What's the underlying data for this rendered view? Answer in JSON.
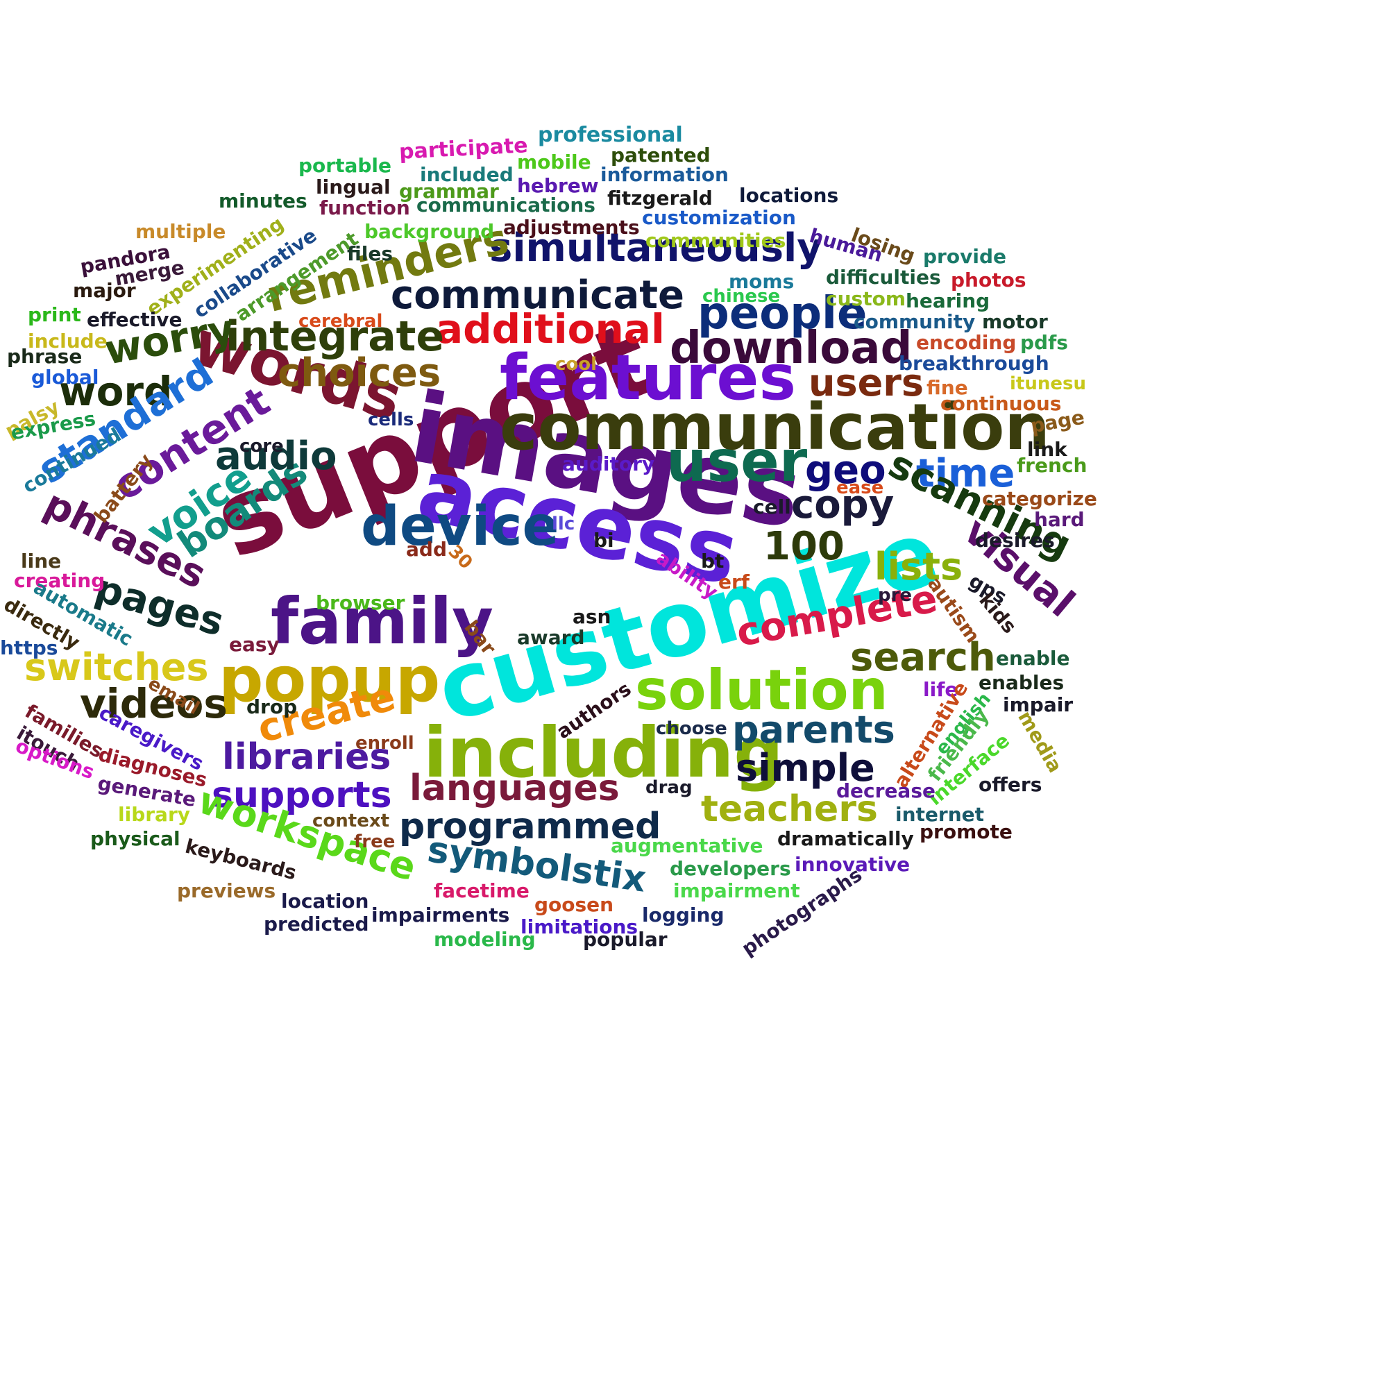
{
  "words": [
    {
      "text": "support",
      "color": "#7a0d3c",
      "weight": 100
    },
    {
      "text": "images",
      "color": "#5a1082",
      "weight": 95
    },
    {
      "text": "customize",
      "color": "#00e5dc",
      "weight": 95
    },
    {
      "text": "access",
      "color": "#5b21d6",
      "weight": 90
    },
    {
      "text": "communication",
      "color": "#3a3d0d",
      "weight": 80
    },
    {
      "text": "including",
      "color": "#86b10a",
      "weight": 78
    },
    {
      "text": "features",
      "color": "#6c0fd1",
      "weight": 72
    },
    {
      "text": "words",
      "color": "#7b1530",
      "weight": 72
    },
    {
      "text": "family",
      "color": "#4c1487",
      "weight": 70
    },
    {
      "text": "solution",
      "color": "#79d20c",
      "weight": 68
    },
    {
      "text": "popup",
      "color": "#c7a700",
      "weight": 68
    },
    {
      "text": "device",
      "color": "#0f4a82",
      "weight": 62
    },
    {
      "text": "user",
      "color": "#0e6a50",
      "weight": 62
    },
    {
      "text": "additional",
      "color": "#e00f1b",
      "weight": 50
    },
    {
      "text": "simultaneously",
      "color": "#10136a",
      "weight": 50
    },
    {
      "text": "communicate",
      "color": "#0e1a3a",
      "weight": 50
    },
    {
      "text": "people",
      "color": "#0c2d7a",
      "weight": 50
    },
    {
      "text": "download",
      "color": "#3a0a3a",
      "weight": 50
    },
    {
      "text": "integrate",
      "color": "#2e3f0a",
      "weight": 50
    },
    {
      "text": "reminders",
      "color": "#727a10",
      "weight": 50
    },
    {
      "text": "worry",
      "color": "#2b4d0c",
      "weight": 48
    },
    {
      "text": "choices",
      "color": "#7e5a10",
      "weight": 46
    },
    {
      "text": "word",
      "color": "#1c2d0a",
      "weight": 46
    },
    {
      "text": "standard",
      "color": "#1e6fd6",
      "weight": 46
    },
    {
      "text": "content",
      "color": "#6a1a9a",
      "weight": 46
    },
    {
      "text": "voice",
      "color": "#129e8d",
      "weight": 46
    },
    {
      "text": "boards",
      "color": "#138a7a",
      "weight": 46
    },
    {
      "text": "phrases",
      "color": "#5a0f5a",
      "weight": 46
    },
    {
      "text": "audio",
      "color": "#0e3a3a",
      "weight": 46
    },
    {
      "text": "geo",
      "color": "#0f0c7a",
      "weight": 46
    },
    {
      "text": "time",
      "color": "#1a5fd8",
      "weight": 46
    },
    {
      "text": "users",
      "color": "#7a2a0f",
      "weight": 46
    },
    {
      "text": "scanning",
      "color": "#163a0f",
      "weight": 46
    },
    {
      "text": "copy",
      "color": "#1a1a3a",
      "weight": 46
    },
    {
      "text": "100",
      "color": "#2d3a0a",
      "weight": 46
    },
    {
      "text": "visual",
      "color": "#5a0f6a",
      "weight": 46
    },
    {
      "text": "lists",
      "color": "#8ab00a",
      "weight": 46
    },
    {
      "text": "complete",
      "color": "#d81a4a",
      "weight": 46
    },
    {
      "text": "pages",
      "color": "#0e2d2a",
      "weight": 46
    },
    {
      "text": "switches",
      "color": "#d8c81a",
      "weight": 44
    },
    {
      "text": "videos",
      "color": "#2d2a0a",
      "weight": 46
    },
    {
      "text": "create",
      "color": "#f08a0a",
      "weight": 46
    },
    {
      "text": "search",
      "color": "#4d5a0a",
      "weight": 46
    },
    {
      "text": "parents",
      "color": "#134a6a",
      "weight": 46
    },
    {
      "text": "simple",
      "color": "#0f0f3a",
      "weight": 46
    },
    {
      "text": "libraries",
      "color": "#4d1aa0",
      "weight": 46
    },
    {
      "text": "languages",
      "color": "#7a1a3a",
      "weight": 46
    },
    {
      "text": "supports",
      "color": "#4d10c0",
      "weight": 46
    },
    {
      "text": "teachers",
      "color": "#a0b010",
      "weight": 46
    },
    {
      "text": "workspace",
      "color": "#5ad81a",
      "weight": 46
    },
    {
      "text": "programmed",
      "color": "#0f2a4a",
      "weight": 46
    },
    {
      "text": "symbolstix",
      "color": "#135a7a",
      "weight": 46
    },
    {
      "text": "professional",
      "color": "#1a8aa0",
      "weight": 22
    },
    {
      "text": "participate",
      "color": "#d81ab0",
      "weight": 22
    },
    {
      "text": "patented",
      "color": "#2d4d0a",
      "weight": 22
    },
    {
      "text": "portable",
      "color": "#1ab84d",
      "weight": 22
    },
    {
      "text": "included",
      "color": "#1a7a7a",
      "weight": 22
    },
    {
      "text": "mobile",
      "color": "#4dc81a",
      "weight": 22
    },
    {
      "text": "information",
      "color": "#1a5a9a",
      "weight": 22
    },
    {
      "text": "lingual",
      "color": "#2a1a1a",
      "weight": 22
    },
    {
      "text": "grammar",
      "color": "#4d9a1a",
      "weight": 22
    },
    {
      "text": "hebrew",
      "color": "#5a1ab0",
      "weight": 22
    },
    {
      "text": "minutes",
      "color": "#135a2a",
      "weight": 22
    },
    {
      "text": "function",
      "color": "#7a1a4a",
      "weight": 22
    },
    {
      "text": "communications",
      "color": "#1a6a4a",
      "weight": 22
    },
    {
      "text": "fitzgerald",
      "color": "#1a1a1a",
      "weight": 22
    },
    {
      "text": "locations",
      "color": "#0f1a3a",
      "weight": 22
    },
    {
      "text": "multiple",
      "color": "#c88a2a",
      "weight": 22
    },
    {
      "text": "customization",
      "color": "#1a5ac8",
      "weight": 22
    },
    {
      "text": "experimenting",
      "color": "#a0b01a",
      "weight": 22
    },
    {
      "text": "collaborative",
      "color": "#1a4a8a",
      "weight": 22
    },
    {
      "text": "arrangement",
      "color": "#4d9a2a",
      "weight": 22
    },
    {
      "text": "background",
      "color": "#4dc82a",
      "weight": 22
    },
    {
      "text": "adjustments",
      "color": "#4a0f1a",
      "weight": 22
    },
    {
      "text": "losing",
      "color": "#6a4a1a",
      "weight": 22
    },
    {
      "text": "pandora",
      "color": "#3a0f3a",
      "weight": 22
    },
    {
      "text": "merge",
      "color": "#3a1a3a",
      "weight": 22
    },
    {
      "text": "files",
      "color": "#1a3a2a",
      "weight": 22
    },
    {
      "text": "communities",
      "color": "#a0c81a",
      "weight": 22
    },
    {
      "text": "human",
      "color": "#4a1a9a",
      "weight": 22
    },
    {
      "text": "provide",
      "color": "#1a7a6a",
      "weight": 22
    },
    {
      "text": "major",
      "color": "#2a1a0f",
      "weight": 22
    },
    {
      "text": "moms",
      "color": "#1a7a9a",
      "weight": 22
    },
    {
      "text": "difficulties",
      "color": "#1a5a3a",
      "weight": 22
    },
    {
      "text": "photos",
      "color": "#c81a2a",
      "weight": 22
    },
    {
      "text": "print",
      "color": "#2ab81a",
      "weight": 22
    },
    {
      "text": "effective",
      "color": "#1a1a2a",
      "weight": 22
    },
    {
      "text": "chinese",
      "color": "#2ac84d",
      "weight": 22
    },
    {
      "text": "custom",
      "color": "#8ab81a",
      "weight": 22
    },
    {
      "text": "hearing",
      "color": "#1a6a3a",
      "weight": 22
    },
    {
      "text": "include",
      "color": "#c8b81a",
      "weight": 22
    },
    {
      "text": "cerebral",
      "color": "#d84a1a",
      "weight": 22
    },
    {
      "text": "community",
      "color": "#1a5a8a",
      "weight": 22
    },
    {
      "text": "motor",
      "color": "#1a3a2a",
      "weight": 22
    },
    {
      "text": "phrase",
      "color": "#1a2a1a",
      "weight": 22
    },
    {
      "text": "encoding",
      "color": "#c84a2a",
      "weight": 22
    },
    {
      "text": "pdfs",
      "color": "#2a9a4a",
      "weight": 22
    },
    {
      "text": "global",
      "color": "#1a5ad8",
      "weight": 22
    },
    {
      "text": "cool",
      "color": "#c8a02a",
      "weight": 22
    },
    {
      "text": "breakthrough",
      "color": "#1a4a9a",
      "weight": 22
    },
    {
      "text": "itunesu",
      "color": "#c8c81a",
      "weight": 22
    },
    {
      "text": "fine",
      "color": "#d86a2a",
      "weight": 22
    },
    {
      "text": "palsy",
      "color": "#c8b82a",
      "weight": 22
    },
    {
      "text": "express",
      "color": "#1a9a4a",
      "weight": 22
    },
    {
      "text": "cells",
      "color": "#1a2a7a",
      "weight": 22
    },
    {
      "text": "continuous",
      "color": "#c85a1a",
      "weight": 22
    },
    {
      "text": "page",
      "color": "#8a5a1a",
      "weight": 22
    },
    {
      "text": "continued",
      "color": "#1a7a9a",
      "weight": 22
    },
    {
      "text": "link",
      "color": "#1a1a1a",
      "weight": 22
    },
    {
      "text": "core",
      "color": "#1a1a2a",
      "weight": 22
    },
    {
      "text": "battery",
      "color": "#8a4a1a",
      "weight": 22
    },
    {
      "text": "auditory",
      "color": "#5a1ac8",
      "weight": 22
    },
    {
      "text": "french",
      "color": "#4a9a1a",
      "weight": 22
    },
    {
      "text": "ease",
      "color": "#d84a1a",
      "weight": 22
    },
    {
      "text": "categorize",
      "color": "#9a4a1a",
      "weight": 22
    },
    {
      "text": "cell",
      "color": "#1a1a2a",
      "weight": 22
    },
    {
      "text": "llc",
      "color": "#5a4ad8",
      "weight": 22
    },
    {
      "text": "hard",
      "color": "#5a1a7a",
      "weight": 22
    },
    {
      "text": "bi",
      "color": "#1a1a1a",
      "weight": 22
    },
    {
      "text": "desires",
      "color": "#1a1a2a",
      "weight": 22
    },
    {
      "text": "add",
      "color": "#8a2a1a",
      "weight": 22
    },
    {
      "text": "30",
      "color": "#c86a1a",
      "weight": 22
    },
    {
      "text": "line",
      "color": "#4a3a1a",
      "weight": 22
    },
    {
      "text": "ability",
      "color": "#c81ac8",
      "weight": 22
    },
    {
      "text": "bt",
      "color": "#1a1a1a",
      "weight": 22
    },
    {
      "text": "creating",
      "color": "#d81a9a",
      "weight": 22
    },
    {
      "text": "erf",
      "color": "#c84a1a",
      "weight": 22
    },
    {
      "text": "gps",
      "color": "#1a1a2a",
      "weight": 22
    },
    {
      "text": "automatic",
      "color": "#1a7a8a",
      "weight": 22
    },
    {
      "text": "browser",
      "color": "#4ab81a",
      "weight": 22
    },
    {
      "text": "pre",
      "color": "#2a1a3a",
      "weight": 22
    },
    {
      "text": "autism",
      "color": "#9a4a1a",
      "weight": 22
    },
    {
      "text": "kids",
      "color": "#2a1a1a",
      "weight": 22
    },
    {
      "text": "directly",
      "color": "#3a2a0f",
      "weight": 22
    },
    {
      "text": "asn",
      "color": "#1a1a1a",
      "weight": 22
    },
    {
      "text": "https",
      "color": "#1a4a9a",
      "weight": 22
    },
    {
      "text": "bar",
      "color": "#8a4a1a",
      "weight": 22
    },
    {
      "text": "award",
      "color": "#1a3a2a",
      "weight": 22
    },
    {
      "text": "easy",
      "color": "#7a1a3a",
      "weight": 22
    },
    {
      "text": "enable",
      "color": "#1a5a3a",
      "weight": 22
    },
    {
      "text": "email",
      "color": "#8a4a1a",
      "weight": 22
    },
    {
      "text": "life",
      "color": "#8a1ac8",
      "weight": 22
    },
    {
      "text": "enables",
      "color": "#1a2a1a",
      "weight": 22
    },
    {
      "text": "drop",
      "color": "#1a2a1a",
      "weight": 22
    },
    {
      "text": "authors",
      "color": "#2a0f1a",
      "weight": 22
    },
    {
      "text": "english",
      "color": "#2ab84a",
      "weight": 22
    },
    {
      "text": "impair",
      "color": "#1a1a2a",
      "weight": 22
    },
    {
      "text": "families",
      "color": "#7a1a2a",
      "weight": 22
    },
    {
      "text": "caregivers",
      "color": "#4a1ac8",
      "weight": 22
    },
    {
      "text": "choose",
      "color": "#1a2a4a",
      "weight": 22
    },
    {
      "text": "alternative",
      "color": "#c84a1a",
      "weight": 22
    },
    {
      "text": "friendly",
      "color": "#4ab84a",
      "weight": 22
    },
    {
      "text": "media",
      "color": "#a09a1a",
      "weight": 22
    },
    {
      "text": "itouch",
      "color": "#3a1a3a",
      "weight": 22
    },
    {
      "text": "enroll",
      "color": "#8a3a1a",
      "weight": 22
    },
    {
      "text": "options",
      "color": "#d81ac8",
      "weight": 22
    },
    {
      "text": "diagnoses",
      "color": "#9a1a2a",
      "weight": 22
    },
    {
      "text": "interface",
      "color": "#4ad82a",
      "weight": 22
    },
    {
      "text": "offers",
      "color": "#1a1a2a",
      "weight": 22
    },
    {
      "text": "generate",
      "color": "#5a1a7a",
      "weight": 22
    },
    {
      "text": "drag",
      "color": "#1a1a2a",
      "weight": 22
    },
    {
      "text": "decrease",
      "color": "#5a1a9a",
      "weight": 22
    },
    {
      "text": "library",
      "color": "#b8d81a",
      "weight": 22
    },
    {
      "text": "context",
      "color": "#6a4a1a",
      "weight": 22
    },
    {
      "text": "internet",
      "color": "#1a5a6a",
      "weight": 22
    },
    {
      "text": "physical",
      "color": "#1a5a1a",
      "weight": 22
    },
    {
      "text": "keyboards",
      "color": "#2a1a1a",
      "weight": 22
    },
    {
      "text": "free",
      "color": "#8a3a1a",
      "weight": 22
    },
    {
      "text": "augmentative",
      "color": "#4ad84a",
      "weight": 22
    },
    {
      "text": "dramatically",
      "color": "#1a1a1a",
      "weight": 22
    },
    {
      "text": "promote",
      "color": "#3a0f0f",
      "weight": 22
    },
    {
      "text": "developers",
      "color": "#2a9a4a",
      "weight": 22
    },
    {
      "text": "innovative",
      "color": "#5a1ab8",
      "weight": 22
    },
    {
      "text": "previews",
      "color": "#9a6a2a",
      "weight": 22
    },
    {
      "text": "facetime",
      "color": "#d81a6a",
      "weight": 22
    },
    {
      "text": "impairment",
      "color": "#4ad84a",
      "weight": 22
    },
    {
      "text": "photographs",
      "color": "#2a1a4a",
      "weight": 22
    },
    {
      "text": "location",
      "color": "#1a1a4a",
      "weight": 22
    },
    {
      "text": "goosen",
      "color": "#c84a1a",
      "weight": 22
    },
    {
      "text": "impairments",
      "color": "#1a1a4a",
      "weight": 22
    },
    {
      "text": "logging",
      "color": "#1a2a6a",
      "weight": 22
    },
    {
      "text": "predicted",
      "color": "#1a1a4a",
      "weight": 22
    },
    {
      "text": "limitations",
      "color": "#4a1ac8",
      "weight": 22
    },
    {
      "text": "modeling",
      "color": "#2ab84a",
      "weight": 22
    },
    {
      "text": "popular",
      "color": "#1a1a2a",
      "weight": 22
    }
  ]
}
